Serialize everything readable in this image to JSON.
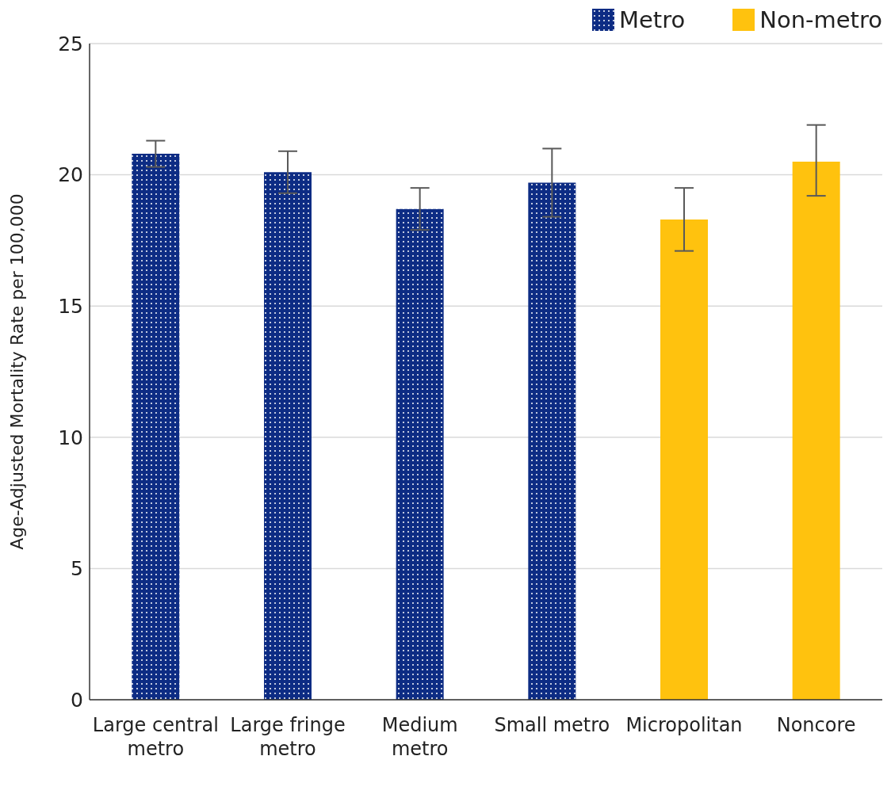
{
  "chart_data": {
    "type": "bar",
    "ylabel": "Age-Adjusted Mortality Rate per 100,000",
    "categories": [
      "Large central metro",
      "Large fringe metro",
      "Medium metro",
      "Small metro",
      "Micropolitan",
      "Noncore"
    ],
    "series": [
      {
        "name": "Metro",
        "color": "#0d2c84",
        "values": [
          20.8,
          20.1,
          18.7,
          19.7,
          null,
          null
        ],
        "errors": [
          [
            20.3,
            21.3
          ],
          [
            19.3,
            20.9
          ],
          [
            17.9,
            19.5
          ],
          [
            18.4,
            21.0
          ],
          null,
          null
        ]
      },
      {
        "name": "Non-metro",
        "color": "#ffc20e",
        "values": [
          null,
          null,
          null,
          null,
          18.3,
          20.5
        ],
        "errors": [
          null,
          null,
          null,
          null,
          [
            17.1,
            19.5
          ],
          [
            19.2,
            21.9
          ]
        ]
      }
    ],
    "ylim": [
      0,
      25
    ],
    "yticks": [
      0,
      5,
      10,
      15,
      20,
      25
    ],
    "grid": "y",
    "legend": "top right"
  }
}
